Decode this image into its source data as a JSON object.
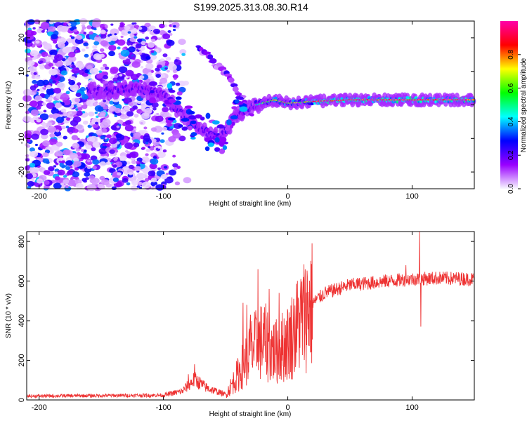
{
  "title": "S199.2025.313.08.30.R14",
  "chart_data": [
    {
      "type": "heatmap",
      "xlabel": "Height of straight line (km)",
      "ylabel": "Frequency (Hz)",
      "xlim": [
        -210,
        150
      ],
      "ylim": [
        -25,
        25
      ],
      "xticks": [
        -200,
        -100,
        0,
        100
      ],
      "yticks": [
        -20,
        -10,
        0,
        10,
        20
      ],
      "colorbar": {
        "label": "Normalized spectral amplitude",
        "range": [
          0,
          1
        ],
        "ticks": [
          "0.0",
          "0.2",
          "0.4",
          "0.6",
          "0.8"
        ],
        "colors": [
          "#f8f8ff",
          "#9900ff",
          "#0000ff",
          "#00ffff",
          "#00ff00",
          "#ffff00",
          "#ff0000",
          "#ff00aa"
        ]
      },
      "ridge": [
        {
          "x": -150,
          "f": 4
        },
        {
          "x": -120,
          "f": 5
        },
        {
          "x": -100,
          "f": 3
        },
        {
          "x": -85,
          "f": -3
        },
        {
          "x": -70,
          "f": -7
        },
        {
          "x": -55,
          "f": -10
        },
        {
          "x": -40,
          "f": -3
        },
        {
          "x": -25,
          "f": 0
        },
        {
          "x": -10,
          "f": 1.5
        },
        {
          "x": 0,
          "f": 0.5
        },
        {
          "x": 20,
          "f": 1
        },
        {
          "x": 50,
          "f": 1.5
        },
        {
          "x": 100,
          "f": 1.5
        },
        {
          "x": 150,
          "f": 1.5
        }
      ],
      "branch": [
        {
          "x": -70,
          "f": 17
        },
        {
          "x": -60,
          "f": 13
        },
        {
          "x": -50,
          "f": 9
        },
        {
          "x": -40,
          "f": 4
        },
        {
          "x": -30,
          "f": -2
        }
      ]
    },
    {
      "type": "line",
      "xlabel": "Height of straight line (km)",
      "ylabel": "SNR (10 * v/v)",
      "xlim": [
        -210,
        150
      ],
      "ylim": [
        0,
        850
      ],
      "xticks": [
        -200,
        -100,
        0,
        100
      ],
      "yticks": [
        0,
        200,
        400,
        600,
        800
      ],
      "color": "#ee3333",
      "envelope": [
        {
          "x": -210,
          "y": 18
        },
        {
          "x": -100,
          "y": 22
        },
        {
          "x": -85,
          "y": 40
        },
        {
          "x": -75,
          "y": 95
        },
        {
          "x": -65,
          "y": 55
        },
        {
          "x": -50,
          "y": 25
        },
        {
          "x": -40,
          "y": 130
        },
        {
          "x": -30,
          "y": 250
        },
        {
          "x": -20,
          "y": 300
        },
        {
          "x": -10,
          "y": 240
        },
        {
          "x": 0,
          "y": 290
        },
        {
          "x": 10,
          "y": 400
        },
        {
          "x": 20,
          "y": 490
        },
        {
          "x": 30,
          "y": 540
        },
        {
          "x": 50,
          "y": 580
        },
        {
          "x": 80,
          "y": 600
        },
        {
          "x": 100,
          "y": 610
        },
        {
          "x": 120,
          "y": 615
        },
        {
          "x": 150,
          "y": 610
        }
      ],
      "spikes": [
        {
          "x": -24,
          "y": 660
        },
        {
          "x": -33,
          "y": 480
        },
        {
          "x": -36,
          "y": 490
        },
        {
          "x": -30,
          "y": 430
        },
        {
          "x": -15,
          "y": 560
        },
        {
          "x": -7,
          "y": 540
        },
        {
          "x": 10,
          "y": 500
        },
        {
          "x": 106,
          "y": 850
        },
        {
          "x": 107,
          "y": 370
        },
        {
          "x": 95,
          "y": 680
        },
        {
          "x": -75,
          "y": 180
        },
        {
          "x": -80,
          "y": 130
        }
      ]
    }
  ]
}
